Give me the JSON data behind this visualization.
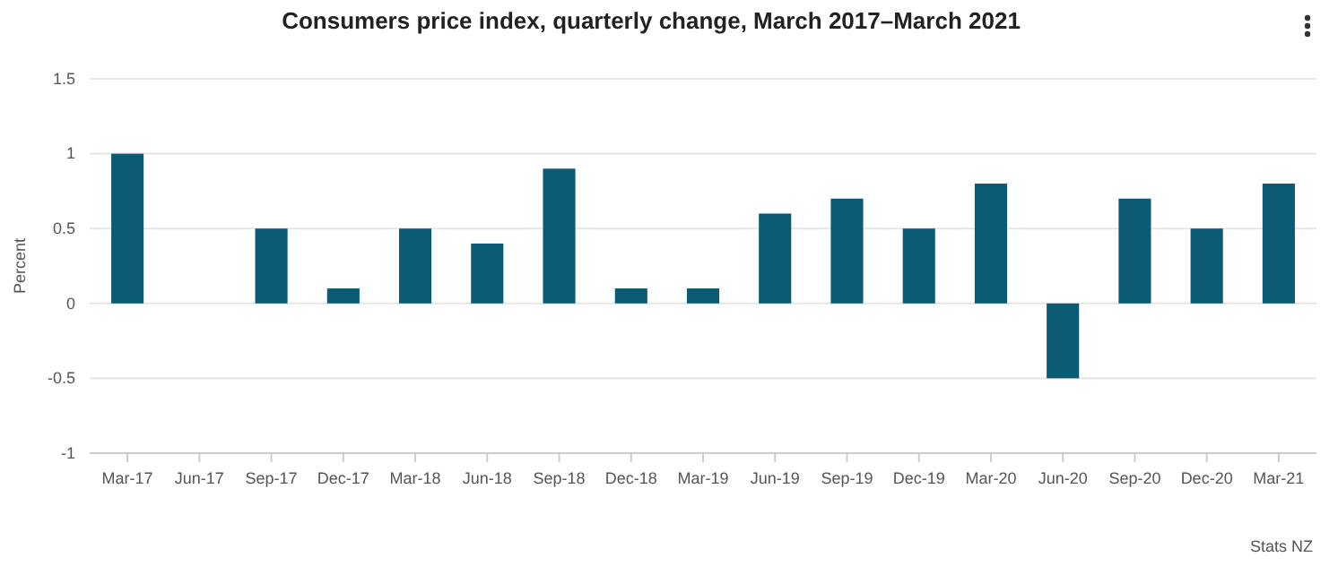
{
  "chart_data": {
    "type": "bar",
    "title": "Consumers price index, quarterly change, March 2017–March 2021",
    "ylabel": "Percent",
    "categories": [
      "Mar-17",
      "Jun-17",
      "Sep-17",
      "Dec-17",
      "Mar-18",
      "Jun-18",
      "Sep-18",
      "Dec-18",
      "Mar-19",
      "Jun-19",
      "Sep-19",
      "Dec-19",
      "Mar-20",
      "Jun-20",
      "Sep-20",
      "Dec-20",
      "Mar-21"
    ],
    "values": [
      1,
      0,
      0.5,
      0.1,
      0.5,
      0.4,
      0.9,
      0.1,
      0.1,
      0.6,
      0.7,
      0.5,
      0.8,
      -0.5,
      0.7,
      0.5,
      0.8
    ],
    "color": "#0b5b74",
    "ylim": [
      -1,
      1.5
    ],
    "yticks": [
      -1,
      -0.5,
      0,
      0.5,
      1,
      1.5
    ],
    "grid": "y",
    "annotations": [
      "Stats NZ"
    ]
  }
}
